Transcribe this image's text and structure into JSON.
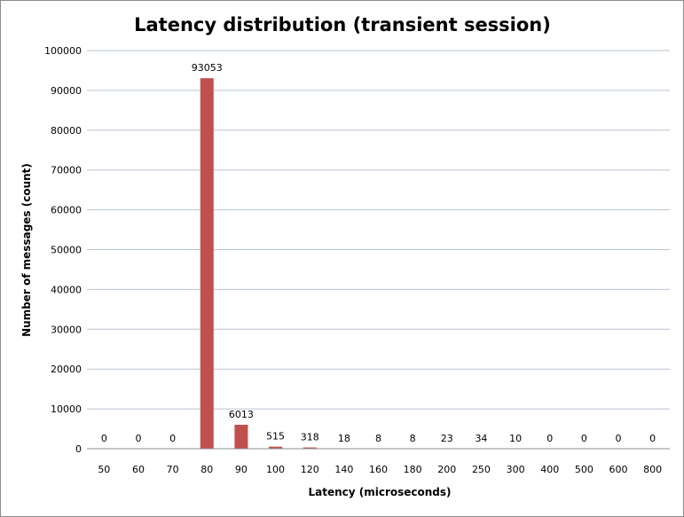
{
  "chart_data": {
    "type": "bar",
    "title": "Latency distribution (transient session)",
    "xlabel": "Latency (microseconds)",
    "ylabel": "Number of messages (count)",
    "categories": [
      "50",
      "60",
      "70",
      "80",
      "90",
      "100",
      "120",
      "140",
      "160",
      "180",
      "200",
      "250",
      "300",
      "400",
      "500",
      "600",
      "800"
    ],
    "values": [
      0,
      0,
      0,
      93053,
      6013,
      515,
      318,
      18,
      8,
      8,
      23,
      34,
      10,
      0,
      0,
      0,
      0
    ],
    "ylim": [
      0,
      100000
    ],
    "yticks": [
      0,
      10000,
      20000,
      30000,
      40000,
      50000,
      60000,
      70000,
      80000,
      90000,
      100000
    ],
    "grid": true,
    "legend": "none",
    "bar_color": "#c0504d",
    "grid_color": "#b9c4cf"
  }
}
